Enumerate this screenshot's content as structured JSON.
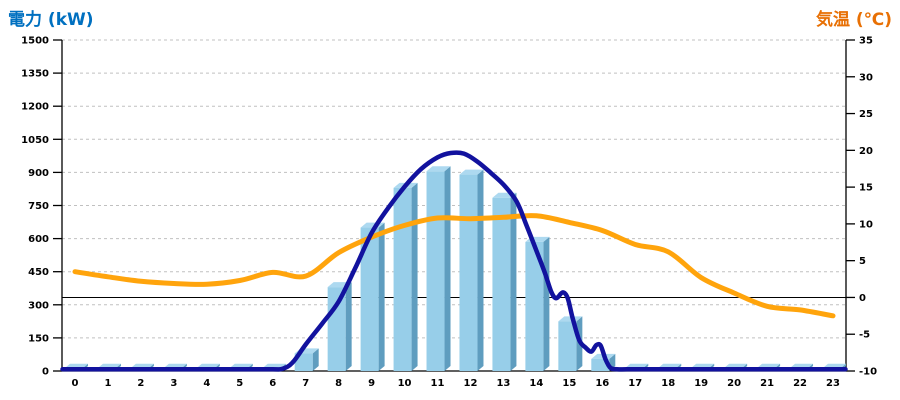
{
  "chart_data": {
    "type": "bar",
    "subtype": "bar+line dual-axis combo",
    "title": "",
    "x_axis": {
      "label": "",
      "labels": [
        "0",
        "1",
        "2",
        "3",
        "4",
        "5",
        "6",
        "7",
        "8",
        "9",
        "10",
        "11",
        "12",
        "13",
        "14",
        "15",
        "16",
        "17",
        "18",
        "19",
        "20",
        "21",
        "22",
        "23"
      ]
    },
    "left_axis": {
      "title": "電力 (kW)",
      "min": 0,
      "max": 1500,
      "step": 150,
      "ticks": [
        0,
        150,
        300,
        450,
        600,
        750,
        900,
        1050,
        1200,
        1350,
        1500
      ]
    },
    "right_axis": {
      "title": "気温 (℃)",
      "min": -10,
      "max": 35,
      "step": 5,
      "ticks": [
        -10,
        -5,
        0,
        5,
        10,
        15,
        20,
        25,
        30,
        35
      ]
    },
    "grid": "dashed horizontal at each left-axis tick",
    "reference_line": {
      "axis": "right",
      "value": 0,
      "style": "solid black"
    },
    "legend": "none",
    "series": [
      {
        "name": "power-bars",
        "type": "bar",
        "axis": "left",
        "unit": "kW",
        "categories": [
          "0",
          "1",
          "2",
          "3",
          "4",
          "5",
          "6",
          "7",
          "8",
          "9",
          "10",
          "11",
          "12",
          "13",
          "14",
          "15",
          "16",
          "17",
          "18",
          "19",
          "20",
          "21",
          "22",
          "23"
        ],
        "values": [
          10,
          10,
          10,
          10,
          10,
          10,
          10,
          80,
          380,
          650,
          830,
          905,
          890,
          785,
          585,
          225,
          55,
          10,
          10,
          10,
          10,
          10,
          10,
          10
        ]
      },
      {
        "name": "power-curve",
        "type": "line",
        "axis": "left",
        "unit": "kW",
        "peak": {
          "hour": 11.4,
          "value": 990
        },
        "points": [
          [
            -0.38,
            8
          ],
          [
            1,
            8
          ],
          [
            2,
            8
          ],
          [
            3,
            8
          ],
          [
            4,
            8
          ],
          [
            5,
            8
          ],
          [
            6,
            8
          ],
          [
            6.3,
            10
          ],
          [
            6.6,
            38
          ],
          [
            7,
            120
          ],
          [
            7.5,
            215
          ],
          [
            8,
            315
          ],
          [
            8.5,
            465
          ],
          [
            9,
            625
          ],
          [
            9.5,
            738
          ],
          [
            10,
            835
          ],
          [
            10.5,
            915
          ],
          [
            11,
            968
          ],
          [
            11.4,
            988
          ],
          [
            11.8,
            985
          ],
          [
            12.2,
            950
          ],
          [
            12.6,
            900
          ],
          [
            13,
            845
          ],
          [
            13.4,
            768
          ],
          [
            13.7,
            660
          ],
          [
            14,
            545
          ],
          [
            14.25,
            448
          ],
          [
            14.45,
            360
          ],
          [
            14.6,
            330
          ],
          [
            14.8,
            356
          ],
          [
            14.95,
            330
          ],
          [
            15.1,
            240
          ],
          [
            15.3,
            140
          ],
          [
            15.5,
            105
          ],
          [
            15.67,
            88
          ],
          [
            15.82,
            118
          ],
          [
            15.95,
            115
          ],
          [
            16.1,
            52
          ],
          [
            16.25,
            14
          ],
          [
            16.45,
            8
          ],
          [
            17,
            8
          ],
          [
            18,
            8
          ],
          [
            19,
            8
          ],
          [
            20,
            8
          ],
          [
            21,
            8
          ],
          [
            22,
            8
          ],
          [
            23,
            8
          ],
          [
            23.38,
            8
          ]
        ]
      },
      {
        "name": "temperature",
        "type": "line",
        "axis": "right",
        "unit": "°C",
        "categories": [
          "0",
          "1",
          "2",
          "3",
          "4",
          "5",
          "6",
          "7",
          "8",
          "9",
          "10",
          "11",
          "12",
          "13",
          "14",
          "15",
          "16",
          "17",
          "18",
          "19",
          "20",
          "21",
          "22",
          "23"
        ],
        "values": [
          3.5,
          2.8,
          2.2,
          1.9,
          1.8,
          2.3,
          3.4,
          2.9,
          6.1,
          8.2,
          9.8,
          10.8,
          10.7,
          10.9,
          11.1,
          10.2,
          9.1,
          7.2,
          6.2,
          2.7,
          0.6,
          -1.2,
          -1.7,
          -2.5
        ]
      }
    ],
    "colors": {
      "bar_front": "#97CEE9",
      "bar_top": "#ADD9F0",
      "bar_side": "#5F9DBF",
      "power_line": "#12129E",
      "temperature_line": "#FFA40C",
      "title_left": "#0070C0",
      "title_right": "#E87004",
      "grid": "#C0C0C0",
      "axis": "#000000",
      "tick_text": "#000000"
    }
  }
}
